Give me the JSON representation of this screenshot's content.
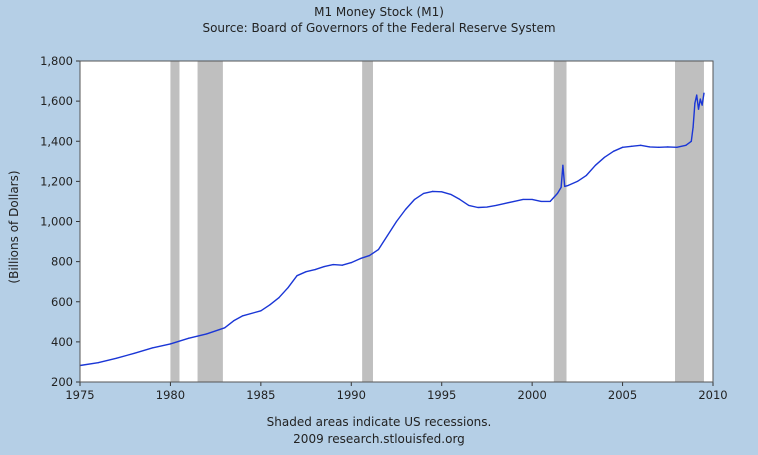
{
  "colors": {
    "page_background": "#b5cfe6",
    "plot_background": "#ffffff",
    "recession_shading": "#bfbfbf",
    "series_line": "#1a36d6",
    "text": "#222222"
  },
  "chart_data": {
    "type": "line",
    "title": "M1 Money Stock (M1)",
    "subtitle": "Source: Board of Governors of the Federal Reserve System",
    "ylabel": "(Billions of Dollars)",
    "xlabel": "",
    "notes": [
      "Shaded areas indicate US recessions.",
      "2009 research.stlouisfed.org"
    ],
    "xlim": [
      1975,
      2010
    ],
    "ylim": [
      200,
      1800
    ],
    "x_ticks": [
      1975,
      1980,
      1985,
      1990,
      1995,
      2000,
      2005,
      2010
    ],
    "x_tick_labels": [
      "1975",
      "1980",
      "1985",
      "1990",
      "1995",
      "2000",
      "2005",
      "2010"
    ],
    "y_ticks": [
      200,
      400,
      600,
      800,
      1000,
      1200,
      1400,
      1600,
      1800
    ],
    "y_tick_labels": [
      "200",
      "400",
      "600",
      "800",
      "1,000",
      "1,200",
      "1,400",
      "1,600",
      "1,800"
    ],
    "grid": false,
    "recessions": [
      [
        1980.0,
        1980.5
      ],
      [
        1981.5,
        1982.9
      ],
      [
        1990.6,
        1991.2
      ],
      [
        2001.2,
        2001.9
      ],
      [
        2007.9,
        2009.5
      ]
    ],
    "series": [
      {
        "x": [
          1975.0,
          1976.0,
          1977.0,
          1978.0,
          1979.0,
          1980.0,
          1981.0,
          1982.0,
          1983.0,
          1983.5,
          1984.0,
          1985.0,
          1985.5,
          1986.0,
          1986.5,
          1987.0,
          1987.5,
          1988.0,
          1988.5,
          1989.0,
          1989.5,
          1990.0,
          1990.5,
          1991.0,
          1991.5,
          1992.0,
          1992.5,
          1993.0,
          1993.5,
          1994.0,
          1994.5,
          1995.0,
          1995.5,
          1996.0,
          1996.5,
          1997.0,
          1997.5,
          1998.0,
          1998.5,
          1999.0,
          1999.5,
          2000.0,
          2000.5,
          2001.0,
          2001.4,
          2001.6,
          2001.7,
          2001.8,
          2002.0,
          2002.5,
          2003.0,
          2003.5,
          2004.0,
          2004.5,
          2005.0,
          2005.5,
          2006.0,
          2006.5,
          2007.0,
          2007.5,
          2008.0,
          2008.5,
          2008.8,
          2008.9,
          2009.0,
          2009.1,
          2009.2,
          2009.3,
          2009.4,
          2009.5
        ],
        "y": [
          282,
          296,
          318,
          343,
          370,
          390,
          418,
          440,
          470,
          505,
          530,
          555,
          585,
          620,
          670,
          730,
          750,
          760,
          775,
          785,
          782,
          795,
          815,
          830,
          860,
          930,
          1000,
          1060,
          1110,
          1140,
          1150,
          1148,
          1135,
          1110,
          1080,
          1070,
          1072,
          1080,
          1090,
          1100,
          1110,
          1110,
          1100,
          1100,
          1140,
          1170,
          1280,
          1175,
          1180,
          1200,
          1230,
          1280,
          1320,
          1350,
          1370,
          1375,
          1380,
          1372,
          1370,
          1372,
          1370,
          1380,
          1400,
          1470,
          1590,
          1630,
          1560,
          1610,
          1580,
          1640
        ]
      }
    ]
  }
}
